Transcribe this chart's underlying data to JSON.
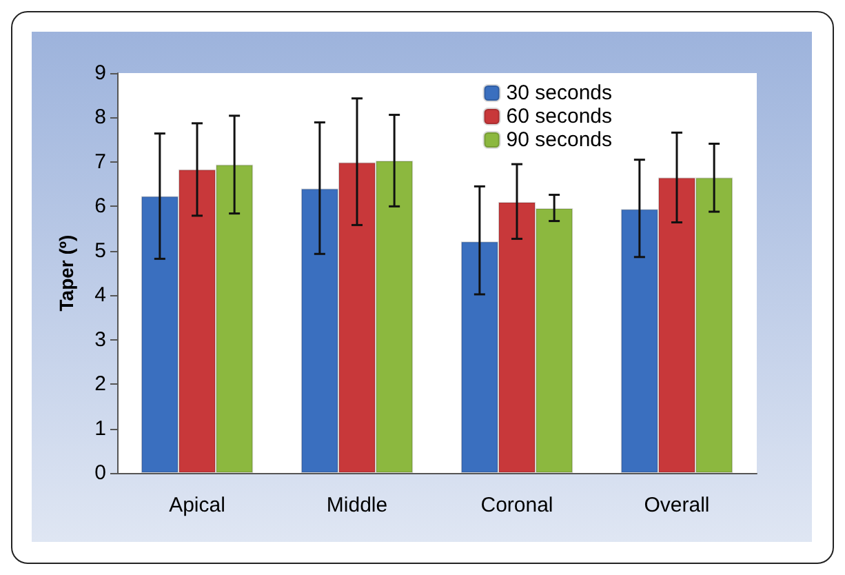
{
  "chart_data": {
    "type": "bar",
    "ylabel": "Taper (º)",
    "categories": [
      "Apical",
      "Middle",
      "Coronal",
      "Overall"
    ],
    "series": [
      {
        "name": "30 seconds",
        "color": "#3a6fbf",
        "values": [
          6.23,
          6.4,
          5.21,
          5.94
        ],
        "errors": [
          [
            4.82,
            7.64
          ],
          [
            4.93,
            7.89
          ],
          [
            4.02,
            6.45
          ],
          [
            4.86,
            7.05
          ]
        ]
      },
      {
        "name": "60 seconds",
        "color": "#c8383a",
        "values": [
          6.83,
          6.99,
          6.1,
          6.65
        ],
        "errors": [
          [
            5.79,
            7.87
          ],
          [
            5.58,
            8.43
          ],
          [
            5.27,
            6.95
          ],
          [
            5.64,
            7.66
          ]
        ]
      },
      {
        "name": "90 seconds",
        "color": "#8cb83f",
        "values": [
          6.94,
          7.03,
          5.96,
          6.65
        ],
        "errors": [
          [
            5.84,
            8.04
          ],
          [
            6.0,
            8.06
          ],
          [
            5.67,
            6.26
          ],
          [
            5.88,
            7.41
          ]
        ]
      }
    ],
    "ylim": [
      0,
      9
    ],
    "yticks": [
      0,
      1,
      2,
      3,
      4,
      5,
      6,
      7,
      8,
      9
    ],
    "grid": false,
    "legend": "top right"
  }
}
